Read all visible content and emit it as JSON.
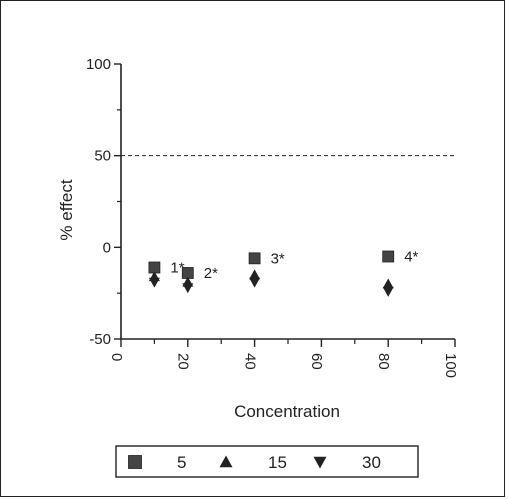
{
  "chart_data": {
    "type": "scatter",
    "xlabel": "Concentration",
    "ylabel": "% effect",
    "xlim": [
      0,
      100
    ],
    "ylim": [
      -50,
      100
    ],
    "x_ticks": [
      "0",
      "20",
      "40",
      "60",
      "80",
      "100"
    ],
    "y_ticks": [
      "100",
      "50",
      "0",
      "-50"
    ],
    "reference_line": {
      "y": 50,
      "style": "dashed"
    },
    "series": [
      {
        "name": "5",
        "marker": "square",
        "points": [
          {
            "x": 10,
            "y": -11
          },
          {
            "x": 20,
            "y": -14
          },
          {
            "x": 40,
            "y": -6
          },
          {
            "x": 80,
            "y": -5
          }
        ]
      },
      {
        "name": "15",
        "marker": "triangle-up",
        "points": [
          {
            "x": 10,
            "y": -16
          },
          {
            "x": 20,
            "y": -19
          },
          {
            "x": 40,
            "y": -15
          },
          {
            "x": 80,
            "y": -20
          }
        ]
      },
      {
        "name": "30",
        "marker": "triangle-down",
        "points": [
          {
            "x": 10,
            "y": -19
          },
          {
            "x": 20,
            "y": -22
          },
          {
            "x": 40,
            "y": -19
          },
          {
            "x": 80,
            "y": -24
          }
        ]
      }
    ],
    "annotations": [
      {
        "text": "1*",
        "x": 10,
        "y": -11
      },
      {
        "text": "2*",
        "x": 20,
        "y": -14
      },
      {
        "text": "3*",
        "x": 40,
        "y": -6
      },
      {
        "text": "4*",
        "x": 80,
        "y": -5
      }
    ],
    "legend": {
      "placement": "bottom",
      "entries": [
        "5",
        "15",
        "30"
      ]
    }
  }
}
